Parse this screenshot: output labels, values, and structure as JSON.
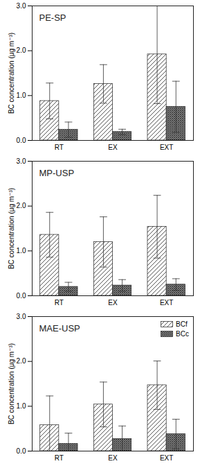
{
  "chart_data": [
    {
      "type": "bar",
      "title": "PE-SP",
      "ylabel": "BC concentration (μg m⁻³)",
      "categories": [
        "RT",
        "EX",
        "EXT"
      ],
      "series": [
        {
          "name": "BCf",
          "color": "#444444",
          "values": [
            0.88,
            1.26,
            1.92
          ],
          "errors": [
            0.4,
            0.43,
            1.1
          ]
        },
        {
          "name": "BCc",
          "color": "#333333",
          "values": [
            0.24,
            0.19,
            0.75
          ],
          "errors": [
            0.17,
            0.06,
            0.57
          ]
        }
      ],
      "ylim": [
        0,
        3
      ],
      "yticks": [
        0,
        1,
        2,
        3
      ]
    },
    {
      "type": "bar",
      "title": "MP-USP",
      "ylabel": "BC concentration (μg m⁻³)",
      "categories": [
        "RT",
        "EX",
        "EXT"
      ],
      "series": [
        {
          "name": "BCf",
          "color": "#444444",
          "values": [
            1.36,
            1.2,
            1.54
          ],
          "errors": [
            0.5,
            0.56,
            0.7
          ]
        },
        {
          "name": "BCc",
          "color": "#333333",
          "values": [
            0.2,
            0.23,
            0.25
          ],
          "errors": [
            0.1,
            0.13,
            0.13
          ]
        }
      ],
      "ylim": [
        0,
        3
      ],
      "yticks": [
        0,
        1,
        2,
        3
      ]
    },
    {
      "type": "bar",
      "title": "MAE-USP",
      "ylabel": "BC concentration (μg m⁻³)",
      "categories": [
        "RT",
        "EX",
        "EXT"
      ],
      "series": [
        {
          "name": "BCf",
          "color": "#444444",
          "values": [
            0.58,
            1.04,
            1.47
          ],
          "errors": [
            0.65,
            0.5,
            0.54
          ]
        },
        {
          "name": "BCc",
          "color": "#333333",
          "values": [
            0.16,
            0.27,
            0.38
          ],
          "errors": [
            0.24,
            0.29,
            0.33
          ]
        }
      ],
      "ylim": [
        0,
        3
      ],
      "yticks": [
        0,
        1,
        2,
        3
      ],
      "legend": "top-right"
    }
  ]
}
